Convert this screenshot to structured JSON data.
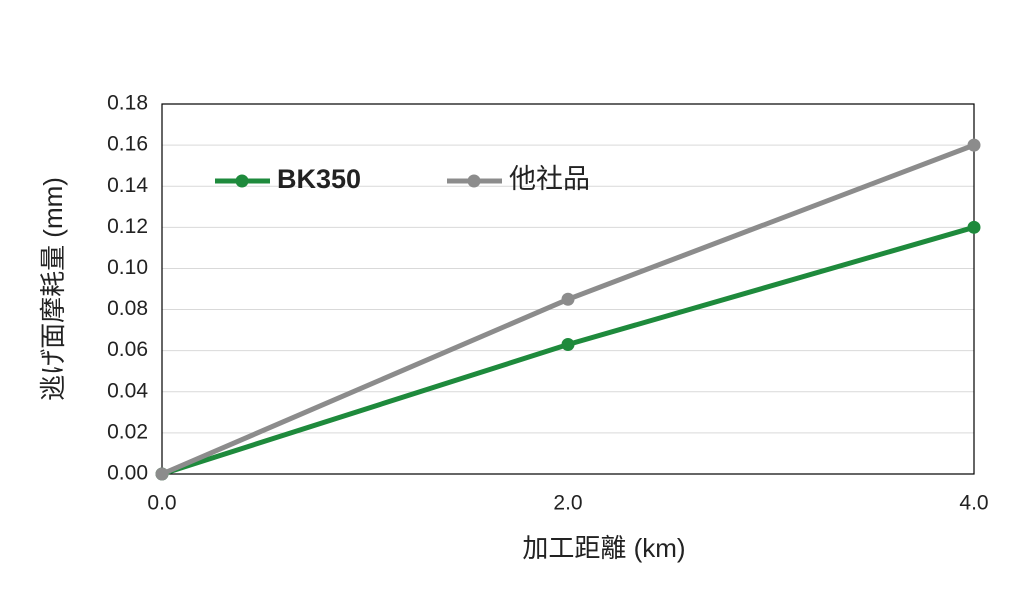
{
  "chart_data": {
    "type": "line",
    "x_label": "加工距離 (km)",
    "y_label": "逃げ面摩耗量 (mm)",
    "x": [
      0,
      2,
      4
    ],
    "xlim": [
      0,
      4
    ],
    "xticks": [
      {
        "value": 0,
        "label": "0.0"
      },
      {
        "value": 2,
        "label": "2.0"
      },
      {
        "value": 4,
        "label": "4.0"
      }
    ],
    "ylim": [
      0,
      0.18
    ],
    "yticks": [
      {
        "value": 0,
        "label": "0.00"
      },
      {
        "value": 0.02,
        "label": "0.02"
      },
      {
        "value": 0.04,
        "label": "0.04"
      },
      {
        "value": 0.06,
        "label": "0.06"
      },
      {
        "value": 0.08,
        "label": "0.08"
      },
      {
        "value": 0.1,
        "label": "0.10"
      },
      {
        "value": 0.12,
        "label": "0.12"
      },
      {
        "value": 0.14,
        "label": "0.14"
      },
      {
        "value": 0.16,
        "label": "0.16"
      },
      {
        "value": 0.18,
        "label": "0.18"
      }
    ],
    "grid": true,
    "legend": "upper left",
    "series": [
      {
        "name": "BK350",
        "color": "#1e8a3c",
        "values": [
          0,
          0.063,
          0.12
        ]
      },
      {
        "name": "他社品",
        "color": "#8c8c8c",
        "values": [
          0,
          0.085,
          0.16
        ]
      }
    ]
  }
}
